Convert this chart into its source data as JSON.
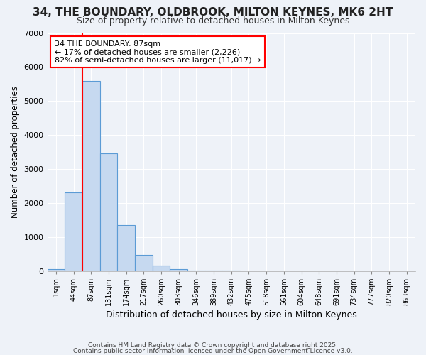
{
  "title_line1": "34, THE BOUNDARY, OLDBROOK, MILTON KEYNES, MK6 2HT",
  "title_line2": "Size of property relative to detached houses in Milton Keynes",
  "xlabel": "Distribution of detached houses by size in Milton Keynes",
  "ylabel": "Number of detached properties",
  "categories": [
    "1sqm",
    "44sqm",
    "87sqm",
    "131sqm",
    "174sqm",
    "217sqm",
    "260sqm",
    "303sqm",
    "346sqm",
    "389sqm",
    "432sqm",
    "475sqm",
    "518sqm",
    "561sqm",
    "604sqm",
    "648sqm",
    "691sqm",
    "734sqm",
    "777sqm",
    "820sqm",
    "863sqm"
  ],
  "values": [
    50,
    2300,
    5580,
    3450,
    1350,
    470,
    160,
    60,
    20,
    5,
    5,
    0,
    0,
    0,
    0,
    0,
    0,
    0,
    0,
    0,
    0
  ],
  "red_line_index": 2,
  "bar_color": "#c6d9f0",
  "bar_edge_color": "#5b9bd5",
  "annotation_text": "34 THE BOUNDARY: 87sqm\n← 17% of detached houses are smaller (2,226)\n82% of semi-detached houses are larger (11,017) →",
  "annotation_box_color": "white",
  "annotation_edge_color": "red",
  "ylim": [
    0,
    7000
  ],
  "yticks": [
    0,
    1000,
    2000,
    3000,
    4000,
    5000,
    6000,
    7000
  ],
  "footer_line1": "Contains HM Land Registry data © Crown copyright and database right 2025.",
  "footer_line2": "Contains public sector information licensed under the Open Government Licence v3.0.",
  "background_color": "#eef2f8",
  "plot_bg_color": "#eef2f8"
}
